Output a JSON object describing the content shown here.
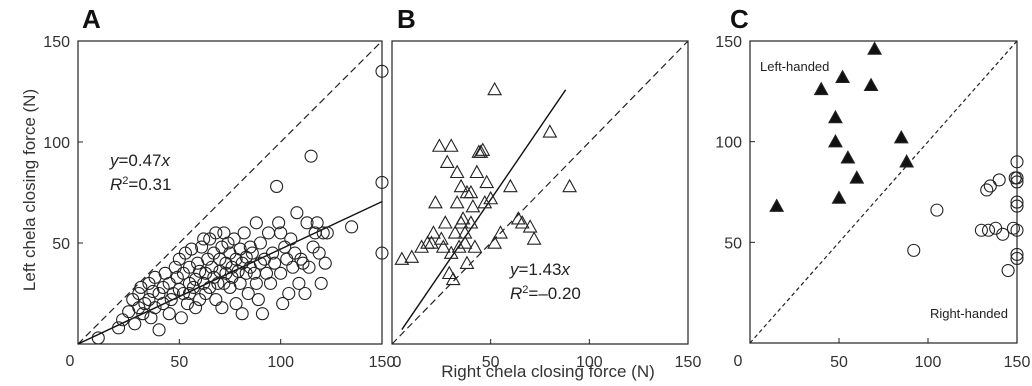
{
  "chart_data": [
    {
      "panel": "A",
      "type": "scatter",
      "xlim": [
        0,
        150
      ],
      "ylim": [
        0,
        150
      ],
      "xticks": [
        "50",
        "100",
        "150"
      ],
      "yticks": [
        "50",
        "100",
        "150"
      ],
      "origin_label": "0",
      "ylabel": "Left chela closing force (N)",
      "marker": "open-circle",
      "reference_line": {
        "type": "identity",
        "style": "dashed"
      },
      "fit_line": {
        "slope": 0.47,
        "x_end": 150,
        "style": "solid"
      },
      "annotation": {
        "eq_y": "y",
        "eq_rest": "=0.47",
        "eq_x": "x",
        "r2": "R2=0.31"
      },
      "points": [
        [
          10,
          3
        ],
        [
          20,
          8
        ],
        [
          22,
          12
        ],
        [
          25,
          16
        ],
        [
          27,
          22
        ],
        [
          28,
          10
        ],
        [
          30,
          18
        ],
        [
          30,
          25
        ],
        [
          31,
          28
        ],
        [
          32,
          15
        ],
        [
          33,
          20
        ],
        [
          35,
          22
        ],
        [
          35,
          30
        ],
        [
          36,
          13
        ],
        [
          37,
          26
        ],
        [
          38,
          18
        ],
        [
          38,
          33
        ],
        [
          40,
          25
        ],
        [
          40,
          7
        ],
        [
          42,
          28
        ],
        [
          42,
          20
        ],
        [
          43,
          35
        ],
        [
          45,
          30
        ],
        [
          45,
          15
        ],
        [
          46,
          22
        ],
        [
          47,
          25
        ],
        [
          48,
          38
        ],
        [
          49,
          33
        ],
        [
          50,
          27
        ],
        [
          50,
          42
        ],
        [
          51,
          13
        ],
        [
          52,
          25
        ],
        [
          52,
          35
        ],
        [
          53,
          45
        ],
        [
          54,
          20
        ],
        [
          55,
          30
        ],
        [
          55,
          38
        ],
        [
          55,
          25
        ],
        [
          56,
          47
        ],
        [
          57,
          28
        ],
        [
          58,
          32
        ],
        [
          58,
          18
        ],
        [
          59,
          40
        ],
        [
          60,
          36
        ],
        [
          60,
          22
        ],
        [
          61,
          48
        ],
        [
          62,
          30
        ],
        [
          62,
          52
        ],
        [
          63,
          35
        ],
        [
          63,
          25
        ],
        [
          64,
          42
        ],
        [
          65,
          28
        ],
        [
          65,
          52
        ],
        [
          66,
          38
        ],
        [
          67,
          33
        ],
        [
          67,
          45
        ],
        [
          68,
          22
        ],
        [
          68,
          55
        ],
        [
          69,
          30
        ],
        [
          70,
          36
        ],
        [
          70,
          42
        ],
        [
          71,
          48
        ],
        [
          71,
          18
        ],
        [
          72,
          55
        ],
        [
          72,
          30
        ],
        [
          73,
          35
        ],
        [
          73,
          40
        ],
        [
          74,
          50
        ],
        [
          75,
          28
        ],
        [
          75,
          45
        ],
        [
          76,
          38
        ],
        [
          76,
          33
        ],
        [
          77,
          52
        ],
        [
          78,
          42
        ],
        [
          78,
          20
        ],
        [
          79,
          36
        ],
        [
          80,
          30
        ],
        [
          80,
          47
        ],
        [
          81,
          40
        ],
        [
          81,
          15
        ],
        [
          82,
          55
        ],
        [
          83,
          35
        ],
        [
          83,
          43
        ],
        [
          84,
          25
        ],
        [
          85,
          38
        ],
        [
          85,
          48
        ],
        [
          86,
          45
        ],
        [
          87,
          35
        ],
        [
          88,
          60
        ],
        [
          88,
          30
        ],
        [
          89,
          22
        ],
        [
          90,
          50
        ],
        [
          90,
          40
        ],
        [
          91,
          15
        ],
        [
          92,
          42
        ],
        [
          93,
          35
        ],
        [
          94,
          55
        ],
        [
          95,
          30
        ],
        [
          96,
          45
        ],
        [
          97,
          40
        ],
        [
          98,
          78
        ],
        [
          99,
          60
        ],
        [
          100,
          35
        ],
        [
          100,
          55
        ],
        [
          101,
          20
        ],
        [
          102,
          48
        ],
        [
          103,
          42
        ],
        [
          104,
          25
        ],
        [
          105,
          52
        ],
        [
          106,
          38
        ],
        [
          107,
          45
        ],
        [
          108,
          65
        ],
        [
          109,
          30
        ],
        [
          110,
          42
        ],
        [
          111,
          40
        ],
        [
          112,
          25
        ],
        [
          113,
          60
        ],
        [
          114,
          38
        ],
        [
          115,
          93
        ],
        [
          116,
          48
        ],
        [
          117,
          55
        ],
        [
          118,
          60
        ],
        [
          119,
          45
        ],
        [
          120,
          30
        ],
        [
          121,
          55
        ],
        [
          122,
          40
        ],
        [
          123,
          55
        ],
        [
          135,
          58
        ],
        [
          150,
          135
        ],
        [
          150,
          80
        ],
        [
          150,
          45
        ]
      ]
    },
    {
      "panel": "B",
      "type": "scatter",
      "xlim": [
        0,
        150
      ],
      "ylim": [
        0,
        150
      ],
      "xticks": [
        "50",
        "100",
        "150"
      ],
      "origin_label": "0",
      "xlabel": "Right chela closing force (N)",
      "marker": "open-triangle",
      "reference_line": {
        "type": "identity",
        "style": "dashed"
      },
      "fit_line": {
        "slope": 1.43,
        "x_start": 5,
        "x_end": 88,
        "style": "solid"
      },
      "annotation": {
        "eq_y": "y",
        "eq_rest": "=1.43",
        "eq_x": "x",
        "r2": "R2=–0.20"
      },
      "points": [
        [
          5,
          42
        ],
        [
          10,
          43
        ],
        [
          15,
          48
        ],
        [
          18,
          50
        ],
        [
          20,
          50
        ],
        [
          21,
          55
        ],
        [
          22,
          70
        ],
        [
          24,
          98
        ],
        [
          25,
          52
        ],
        [
          26,
          48
        ],
        [
          27,
          60
        ],
        [
          28,
          90
        ],
        [
          29,
          35
        ],
        [
          30,
          45
        ],
        [
          30,
          98
        ],
        [
          31,
          32
        ],
        [
          32,
          55
        ],
        [
          33,
          70
        ],
        [
          33,
          85
        ],
        [
          34,
          48
        ],
        [
          35,
          78
        ],
        [
          35,
          60
        ],
        [
          36,
          62
        ],
        [
          37,
          50
        ],
        [
          37,
          55
        ],
        [
          38,
          75
        ],
        [
          38,
          40
        ],
        [
          40,
          60
        ],
        [
          40,
          75
        ],
        [
          41,
          68
        ],
        [
          42,
          48
        ],
        [
          43,
          85
        ],
        [
          44,
          95
        ],
        [
          45,
          95
        ],
        [
          46,
          96
        ],
        [
          47,
          70
        ],
        [
          48,
          80
        ],
        [
          50,
          72
        ],
        [
          52,
          50
        ],
        [
          52,
          126
        ],
        [
          55,
          55
        ],
        [
          60,
          78
        ],
        [
          64,
          62
        ],
        [
          66,
          60
        ],
        [
          70,
          58
        ],
        [
          72,
          52
        ],
        [
          80,
          105
        ],
        [
          90,
          78
        ]
      ]
    },
    {
      "panel": "C",
      "type": "scatter",
      "xlim": [
        0,
        150
      ],
      "ylim": [
        0,
        150
      ],
      "xticks": [
        "50",
        "100",
        "150"
      ],
      "yticks": [
        "50",
        "100",
        "150"
      ],
      "origin_label": "0",
      "reference_line": {
        "type": "identity",
        "style": "dash-dot"
      },
      "annotations": [
        "Left-handed",
        "Right-handed"
      ],
      "series": [
        {
          "name": "Left-handed",
          "marker": "filled-triangle",
          "points": [
            [
              15,
              68
            ],
            [
              40,
              126
            ],
            [
              48,
              112
            ],
            [
              48,
              100
            ],
            [
              50,
              72
            ],
            [
              52,
              132
            ],
            [
              55,
              92
            ],
            [
              60,
              82
            ],
            [
              68,
              128
            ],
            [
              70,
              146
            ],
            [
              85,
              102
            ],
            [
              88,
              90
            ]
          ]
        },
        {
          "name": "Right-handed",
          "marker": "open-circle",
          "points": [
            [
              92,
              46
            ],
            [
              105,
              66
            ],
            [
              130,
              56
            ],
            [
              133,
              76
            ],
            [
              134,
              56
            ],
            [
              135,
              78
            ],
            [
              138,
              57
            ],
            [
              140,
              81
            ],
            [
              142,
              54
            ],
            [
              145,
              36
            ],
            [
              148,
              57
            ],
            [
              150,
              90
            ],
            [
              150,
              82
            ],
            [
              150,
              70
            ],
            [
              150,
              56
            ],
            [
              150,
              44
            ],
            [
              150,
              42
            ],
            [
              149,
              82
            ],
            [
              150,
              68
            ],
            [
              150,
              80
            ]
          ]
        }
      ]
    }
  ],
  "labels": {
    "panel_a": "A",
    "panel_b": "B",
    "panel_c": "C",
    "ylabel": "Left chela closing force (N)",
    "xlabel": "Right chela closing force (N)",
    "left_handed": "Left-handed",
    "right_handed": "Right-handed",
    "a_eq_y": "y",
    "a_eq_rest": "=0.47",
    "a_eq_x": "x",
    "a_r2_r": "R",
    "a_r2_sup": "2",
    "a_r2_rest": "=0.31",
    "b_eq_y": "y",
    "b_eq_rest": "=1.43",
    "b_eq_x": "x",
    "b_r2_r": "R",
    "b_r2_sup": "2",
    "b_r2_rest": "=–0.20"
  }
}
